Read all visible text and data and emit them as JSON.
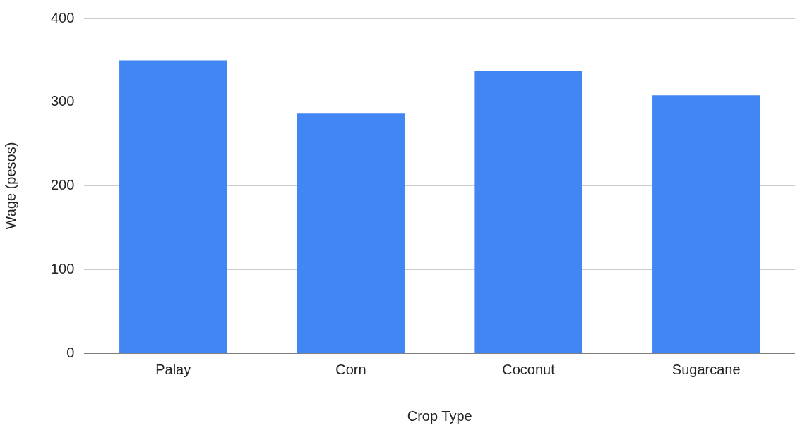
{
  "chart_data": {
    "type": "bar",
    "xlabel": "Crop Type",
    "ylabel": "Wage (pesos)",
    "categories": [
      "Palay",
      "Corn",
      "Coconut",
      "Sugarcane"
    ],
    "values": [
      350,
      287,
      337,
      308
    ],
    "color": "#4285f4",
    "ylim": [
      0,
      400
    ],
    "yticks": [
      0,
      100,
      200,
      300,
      400
    ],
    "grid": "y"
  }
}
